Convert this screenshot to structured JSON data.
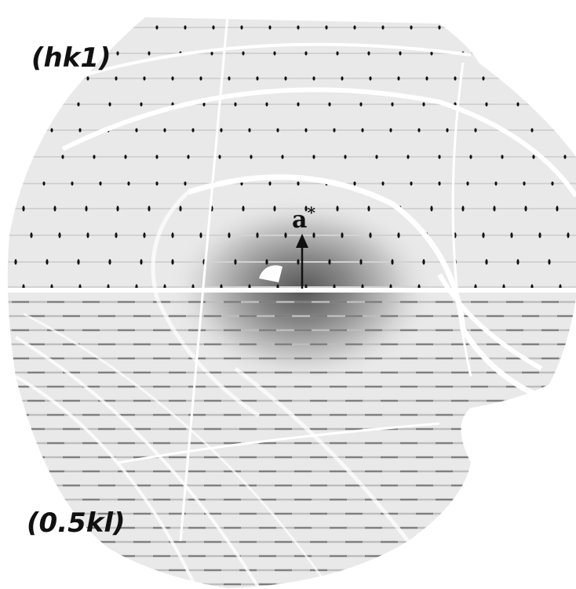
{
  "labels": {
    "top_plane": "(hk1)",
    "bottom_plane": "(0.5kl)",
    "axis": "a",
    "axis_superscript": "*"
  }
}
